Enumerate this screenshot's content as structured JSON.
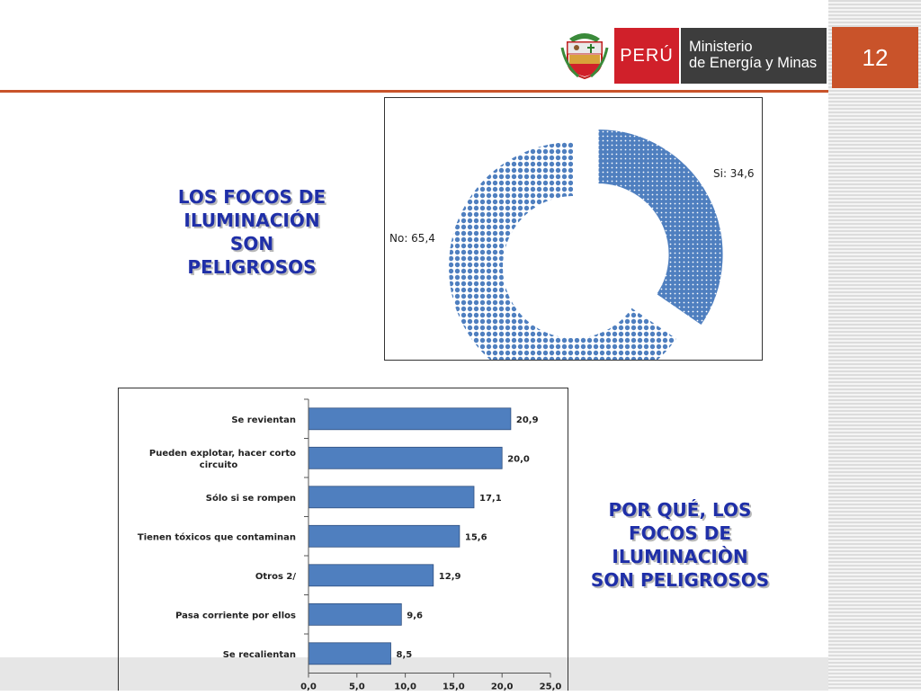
{
  "header": {
    "peru_label": "PERÚ",
    "ministry_line1": "Ministerio",
    "ministry_line2": "de Energía y Minas",
    "page_number": "12"
  },
  "left_heading": {
    "line1": "LOS FOCOS DE",
    "line2": "ILUMINACIÓN",
    "line3": "SON",
    "line4": "PELIGROSOS"
  },
  "right_heading": {
    "line1": "POR QUÉ, LOS",
    "line2": "FOCOS DE",
    "line3": "ILUMINACIÒN",
    "line4": "SON PELIGROSOS"
  },
  "colors": {
    "accent": "#c9532a",
    "heading": "#1f2fa8",
    "bar": "#4f7fbf",
    "slice_fill": "#4f7fbf"
  },
  "chart_data": [
    {
      "type": "pie",
      "variant": "donut",
      "categories": [
        "Si",
        "No"
      ],
      "values": [
        34.6,
        65.4
      ],
      "labels": [
        "Si: 34,6",
        "No: 65,4"
      ],
      "exploded": "Si"
    },
    {
      "type": "bar",
      "orientation": "horizontal",
      "categories": [
        "Se revientan",
        "Pueden explotar, hacer corto circuito",
        "Sólo si se rompen",
        "Tienen tóxicos que contaminan",
        "Otros 2/",
        "Pasa corriente por ellos",
        "Se recalientan"
      ],
      "category_lines": [
        [
          "Se revientan"
        ],
        [
          "Pueden explotar, hacer corto",
          "circuito"
        ],
        [
          "Sólo si se rompen"
        ],
        [
          "Tienen tóxicos que contaminan"
        ],
        [
          "Otros 2/"
        ],
        [
          "Pasa corriente por ellos"
        ],
        [
          "Se recalientan"
        ]
      ],
      "values": [
        20.9,
        20.0,
        17.1,
        15.6,
        12.9,
        9.6,
        8.5
      ],
      "value_labels": [
        "20,9",
        "20,0",
        "17,1",
        "15,6",
        "12,9",
        "9,6",
        "8,5"
      ],
      "xlim": [
        0,
        25
      ],
      "xticks": [
        0,
        5,
        10,
        15,
        20,
        25
      ],
      "xtick_labels": [
        "0,0",
        "5,0",
        "10,0",
        "15,0",
        "20,0",
        "25,0"
      ],
      "grid": false,
      "legend": "none"
    }
  ]
}
